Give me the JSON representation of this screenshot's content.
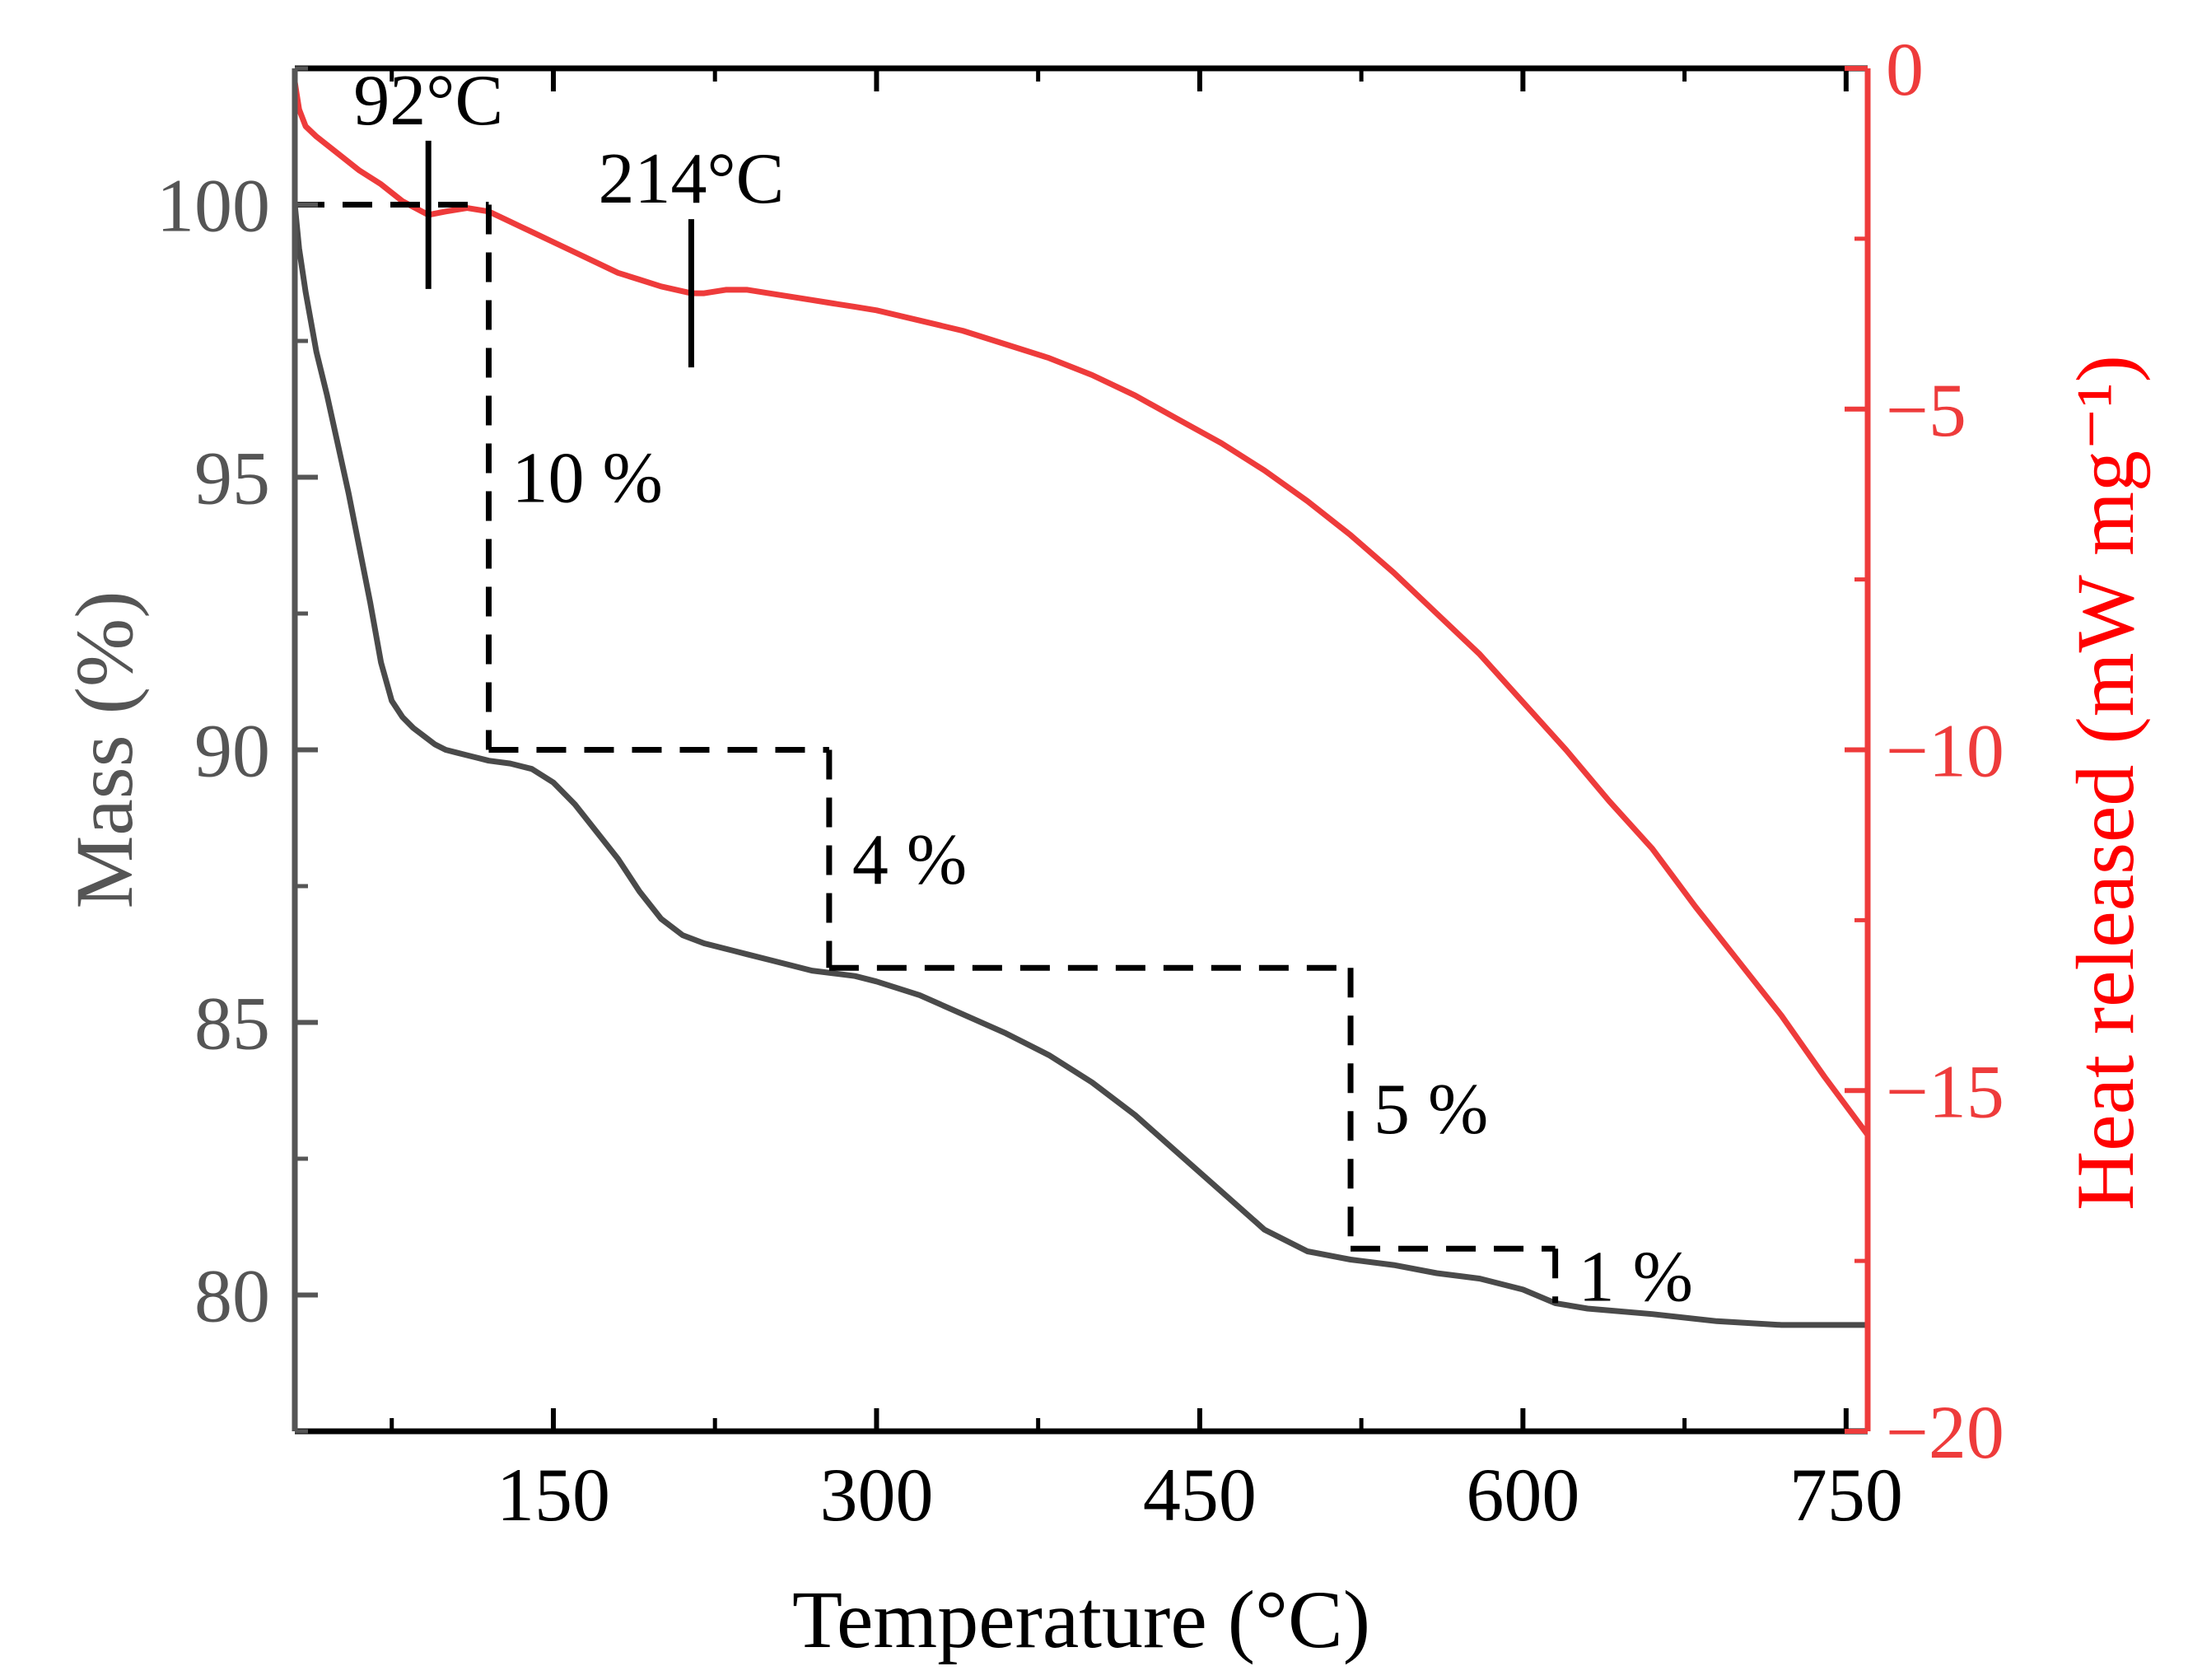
{
  "chart_data": {
    "type": "line",
    "title": "",
    "xlabel": "Temperature (°C)",
    "ylabel_left": "Mass (%)",
    "ylabel_right": "Heat released (mW mg⁻¹)",
    "xlim": [
      30,
      760
    ],
    "ylim_left": [
      77.5,
      102.5
    ],
    "ylim_right": [
      -20,
      0
    ],
    "x_ticks": [
      150,
      300,
      450,
      600,
      750
    ],
    "y_left_ticks": [
      80,
      85,
      90,
      95,
      100
    ],
    "y_right_ticks": [
      0,
      -5,
      -10,
      -15,
      -20
    ],
    "y_right_tick_labels": [
      "0",
      "−5",
      "−10",
      "−15",
      "−20"
    ],
    "series": [
      {
        "name": "Mass",
        "axis": "left",
        "color": "#4a4a4a",
        "x": [
          30,
          32,
          35,
          40,
          45,
          50,
          55,
          60,
          65,
          70,
          75,
          80,
          85,
          90,
          95,
          100,
          105,
          110,
          115,
          120,
          130,
          140,
          150,
          160,
          170,
          180,
          190,
          200,
          210,
          220,
          230,
          240,
          250,
          260,
          270,
          280,
          290,
          300,
          320,
          340,
          360,
          380,
          400,
          420,
          440,
          460,
          480,
          500,
          520,
          540,
          560,
          580,
          600,
          615,
          630,
          660,
          690,
          720,
          760
        ],
        "values": [
          100.0,
          99.2,
          98.4,
          97.3,
          96.5,
          95.6,
          94.7,
          93.7,
          92.7,
          91.6,
          90.9,
          90.6,
          90.4,
          90.25,
          90.1,
          90.0,
          89.95,
          89.9,
          89.85,
          89.8,
          89.75,
          89.65,
          89.4,
          89.0,
          88.5,
          88.0,
          87.4,
          86.9,
          86.6,
          86.45,
          86.35,
          86.25,
          86.15,
          86.05,
          85.95,
          85.9,
          85.85,
          85.75,
          85.5,
          85.15,
          84.8,
          84.4,
          83.9,
          83.3,
          82.6,
          81.9,
          81.2,
          80.8,
          80.65,
          80.55,
          80.4,
          80.3,
          80.1,
          79.85,
          79.75,
          79.65,
          79.52,
          79.45,
          79.45
        ]
      },
      {
        "name": "Heat released",
        "axis": "right",
        "color": "#ee3b3b",
        "x": [
          30,
          32,
          35,
          40,
          50,
          60,
          70,
          80,
          92,
          100,
          110,
          120,
          130,
          140,
          150,
          160,
          170,
          180,
          190,
          200,
          214,
          220,
          230,
          240,
          250,
          260,
          270,
          280,
          290,
          300,
          320,
          340,
          360,
          380,
          400,
          420,
          440,
          460,
          480,
          500,
          520,
          540,
          560,
          580,
          600,
          620,
          640,
          660,
          680,
          700,
          720,
          740,
          760
        ],
        "values": [
          -0.2,
          -0.6,
          -0.85,
          -1.0,
          -1.25,
          -1.5,
          -1.7,
          -1.95,
          -2.15,
          -2.1,
          -2.05,
          -2.1,
          -2.25,
          -2.4,
          -2.55,
          -2.7,
          -2.85,
          -3.0,
          -3.1,
          -3.2,
          -3.3,
          -3.3,
          -3.25,
          -3.25,
          -3.3,
          -3.35,
          -3.4,
          -3.45,
          -3.5,
          -3.55,
          -3.7,
          -3.85,
          -4.05,
          -4.25,
          -4.5,
          -4.8,
          -5.15,
          -5.5,
          -5.9,
          -6.35,
          -6.85,
          -7.4,
          -8.0,
          -8.6,
          -9.3,
          -10.0,
          -10.75,
          -11.45,
          -12.3,
          -13.1,
          -13.9,
          -14.8,
          -15.65
        ]
      }
    ],
    "annotations": {
      "temperature_labels": [
        {
          "text": "92°C",
          "x": 92
        },
        {
          "text": "214°C",
          "x": 214
        }
      ],
      "mass_loss_steps": [
        {
          "label": "10 %",
          "x_start": 30,
          "x_drop": 120,
          "y_from": 100,
          "y_to": 90
        },
        {
          "label": "4 %",
          "x_start": 120,
          "x_drop": 278,
          "y_from": 90,
          "y_to": 86
        },
        {
          "label": "5 %",
          "x_start": 278,
          "x_drop": 520,
          "y_from": 86,
          "y_to": 80.85
        },
        {
          "label": "1 %",
          "x_start": 520,
          "x_drop": 615,
          "y_from": 80.85,
          "y_to": 79.85
        }
      ]
    }
  },
  "colors": {
    "left_axis": "#555555",
    "right_axis": "#ee3b3b",
    "right_title": "#ff0000",
    "annotation": "#000000"
  }
}
